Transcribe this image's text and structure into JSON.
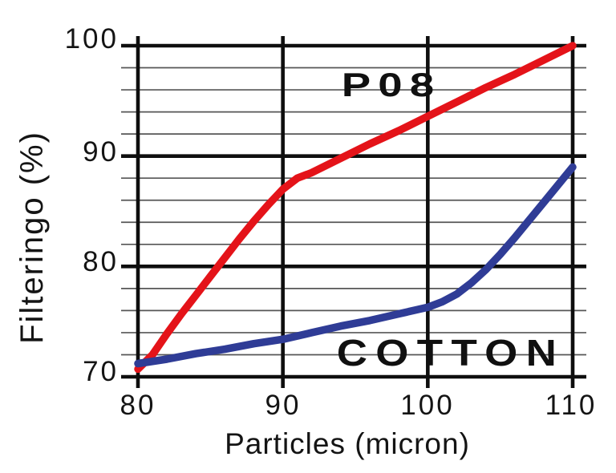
{
  "chart_data": {
    "type": "line",
    "title": "",
    "xlabel": "Particles (micron)",
    "ylabel": "Filteringo (%)",
    "xlim": [
      80,
      110
    ],
    "ylim": [
      70,
      100
    ],
    "x_ticks": [
      "80",
      "90",
      "100",
      "110"
    ],
    "y_ticks": [
      "70",
      "80",
      "90",
      "100"
    ],
    "y_minor_step": 2,
    "grid": "on",
    "legend_position": "inline-curve-labels",
    "axis_color": "#0e0e0e",
    "minor_grid_color": "#565656",
    "series": [
      {
        "name": "P08",
        "color": "#e41319",
        "x": [
          80,
          81,
          82,
          83,
          84,
          85,
          86,
          87,
          88,
          89,
          90,
          91,
          92,
          94,
          96,
          98,
          100,
          102,
          104,
          106,
          108,
          110
        ],
        "y": [
          70.7,
          72.0,
          73.9,
          75.7,
          77.4,
          79.1,
          80.8,
          82.5,
          84.1,
          85.6,
          87.0,
          88.0,
          88.5,
          89.8,
          91.1,
          92.3,
          93.6,
          94.9,
          96.2,
          97.4,
          98.7,
          100.0
        ]
      },
      {
        "name": "COTTON",
        "color": "#2f3c96",
        "x": [
          80,
          82,
          84,
          86,
          88,
          90,
          92,
          94,
          96,
          98,
          100,
          101,
          102,
          103,
          104,
          105,
          106,
          107,
          108,
          109,
          110
        ],
        "y": [
          71.2,
          71.6,
          72.1,
          72.5,
          73.0,
          73.4,
          74.0,
          74.6,
          75.1,
          75.7,
          76.3,
          76.8,
          77.5,
          78.5,
          79.7,
          81.1,
          82.6,
          84.2,
          85.8,
          87.4,
          89.0
        ]
      }
    ]
  }
}
